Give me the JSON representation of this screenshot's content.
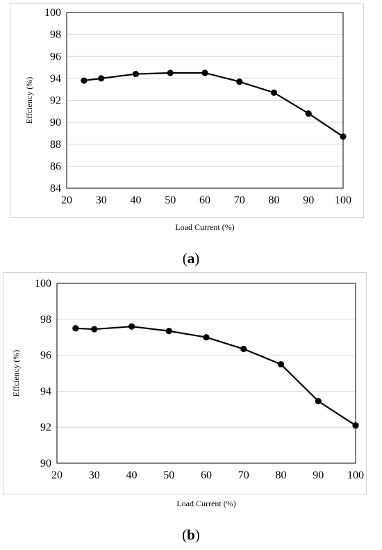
{
  "chart_data": [
    {
      "type": "line",
      "panel": "a",
      "x": [
        25,
        30,
        40,
        50,
        60,
        70,
        80,
        90,
        100
      ],
      "series": [
        {
          "values": [
            93.8,
            94.0,
            94.4,
            94.5,
            94.5,
            93.7,
            92.7,
            90.8,
            88.7
          ]
        }
      ],
      "xlabel": "Load Current (%)",
      "ylabel": "Effciency (%)",
      "xlim": [
        20,
        100
      ],
      "ylim": [
        84,
        100
      ],
      "xticks": [
        20,
        30,
        40,
        50,
        60,
        70,
        80,
        90,
        100
      ],
      "yticks": [
        84,
        86,
        88,
        90,
        92,
        94,
        96,
        98,
        100
      ],
      "grid": true,
      "color": "#000000"
    },
    {
      "type": "line",
      "panel": "b",
      "x": [
        25,
        30,
        40,
        50,
        60,
        70,
        80,
        90,
        100
      ],
      "series": [
        {
          "values": [
            97.5,
            97.45,
            97.6,
            97.35,
            97.0,
            96.35,
            95.5,
            93.45,
            92.1
          ]
        }
      ],
      "xlabel": "Load Current (%)",
      "ylabel": "Effciency (%)",
      "xlim": [
        20,
        100
      ],
      "ylim": [
        90,
        100
      ],
      "xticks": [
        20,
        30,
        40,
        50,
        60,
        70,
        80,
        90,
        100
      ],
      "yticks": [
        90,
        92,
        94,
        96,
        98,
        100
      ],
      "grid": true,
      "color": "#000000"
    }
  ],
  "captions": {
    "a": {
      "open": "(",
      "letter": "a",
      "close": ")"
    },
    "b": {
      "open": "(",
      "letter": "b",
      "close": ")"
    }
  }
}
